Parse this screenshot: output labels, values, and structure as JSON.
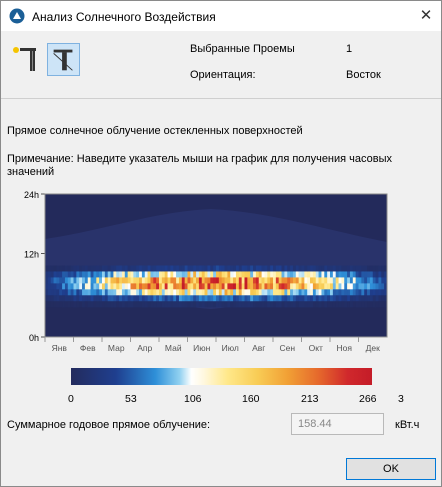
{
  "window": {
    "title": "Анализ Солнечного Воздействия",
    "close_glyph": "✕"
  },
  "info": {
    "openings_label": "Выбранные Проемы",
    "openings_value": "1",
    "orientation_label": "Ориентация:",
    "orientation_value": "Восток"
  },
  "heading": "Прямое солнечное облучение остекленных поверхностей",
  "note": "Примечание: Наведите указатель мыши на график для получения часовых значений",
  "chart_data": {
    "type": "heatmap",
    "y_ticks": [
      "24h",
      "12h",
      "0h"
    ],
    "x_labels": [
      "Янв",
      "Фев",
      "Мар",
      "Апр",
      "Май",
      "Июн",
      "Июл",
      "Авг",
      "Сен",
      "Окт",
      "Ноя",
      "Дек"
    ],
    "colorbar_ticks": [
      "0",
      "53",
      "106",
      "160",
      "213",
      "266"
    ],
    "colorbar_extra": "3",
    "value_range": [
      0,
      266
    ],
    "peak_hour_band": [
      6,
      12
    ],
    "peak_months": [
      "Май",
      "Июн",
      "Июл"
    ]
  },
  "total": {
    "label": "Суммарное годовое прямое облучение:",
    "value": "158.44",
    "unit": "кВт.ч"
  },
  "ok_label": "OK",
  "colors": {
    "background": "#f0f0f0",
    "accent": "#0078d7",
    "heatmap_base": "#232a5b"
  }
}
